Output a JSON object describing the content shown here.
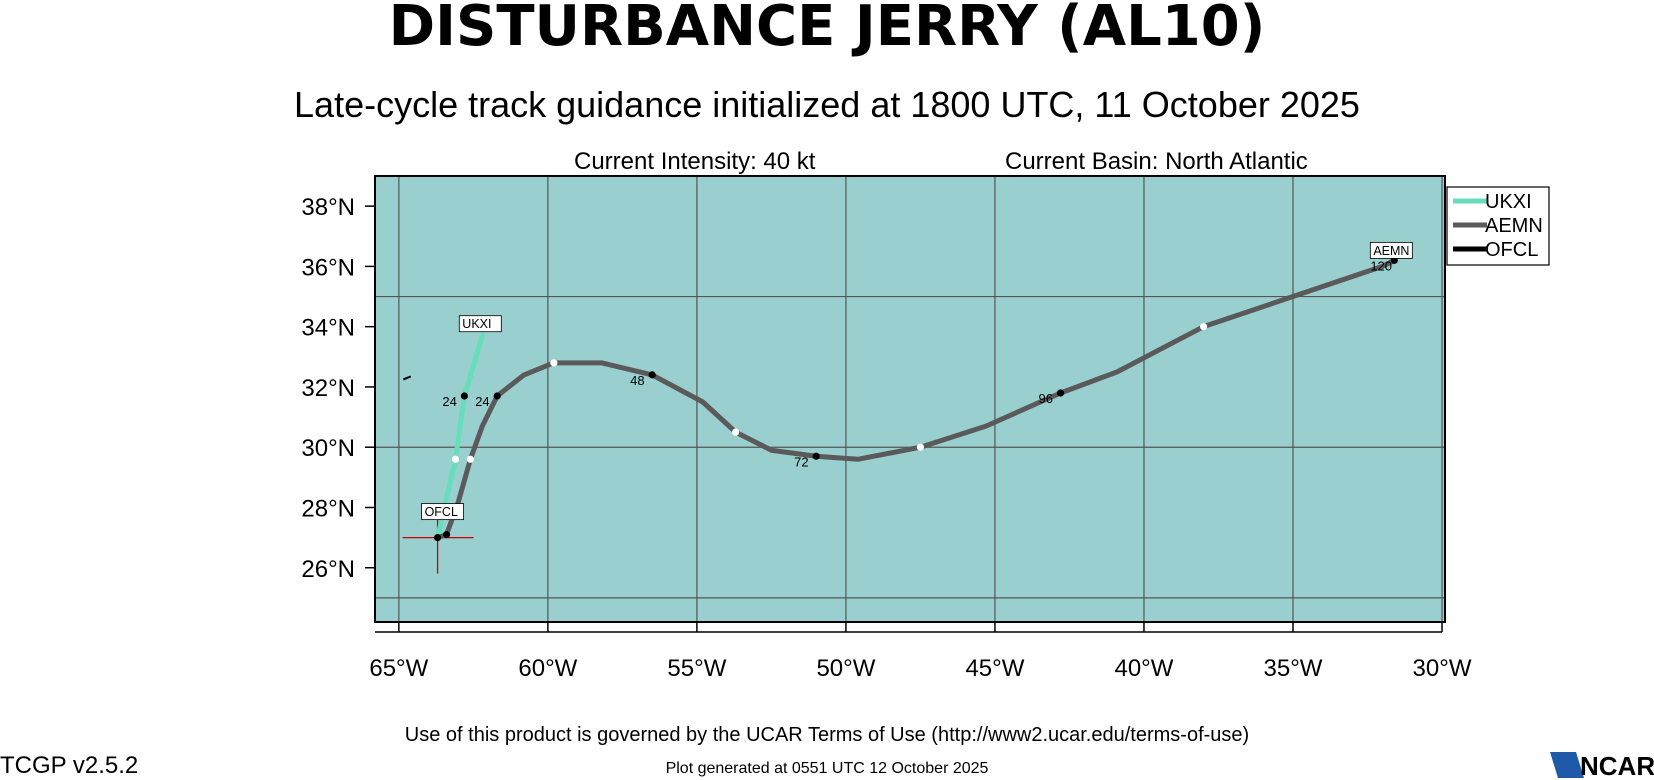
{
  "header": {
    "title": "DISTURBANCE JERRY (AL10)",
    "subtitle": "Late-cycle track guidance initialized at 1800 UTC, 11 October 2025",
    "intensity": "Current Intensity: 40 kt",
    "basin": "Current Basin: North Atlantic"
  },
  "footer": {
    "terms": "Use of this product is governed by the UCAR Terms of Use (http://www2.ucar.edu/terms-of-use)",
    "generated": "Plot generated at 0551 UTC   12 October 2025",
    "version": "TCGP v2.5.2",
    "logo_text": "NCAR"
  },
  "colors": {
    "ocean": "#99cfcf",
    "grid": "#555555",
    "UKXI": "#66ddbb",
    "AEMN": "#5a5a5a",
    "OFCL": "#000000",
    "storm_marker": "#cc0000",
    "logo": "#1e5aa8"
  },
  "chart_data": {
    "type": "line",
    "xlim": [
      -65.8,
      -29.9
    ],
    "ylim": [
      24.2,
      39.0
    ],
    "xticks": [
      -65,
      -60,
      -55,
      -50,
      -45,
      -40,
      -35,
      -30
    ],
    "xtick_labels": [
      "65°W",
      "60°W",
      "55°W",
      "50°W",
      "45°W",
      "40°W",
      "35°W",
      "30°W"
    ],
    "yticks": [
      26,
      28,
      30,
      32,
      34,
      36,
      38
    ],
    "ytick_labels": [
      "26°N",
      "28°N",
      "30°N",
      "32°N",
      "34°N",
      "36°N",
      "38°N"
    ],
    "grid_lon": [
      -65,
      -60,
      -55,
      -50,
      -45,
      -40,
      -35,
      -30
    ],
    "grid_lat": [
      25,
      30,
      35
    ],
    "legend": {
      "position": "top-right outside",
      "entries": [
        "UKXI",
        "AEMN",
        "OFCL"
      ]
    },
    "storm_position": {
      "lon": -63.7,
      "lat": 27.0
    },
    "series": [
      {
        "name": "UKXI",
        "label": "UKXI",
        "lon": [
          -63.7,
          -63.4,
          -63.1,
          -62.8,
          -62.2
        ],
        "lat": [
          27.0,
          28.3,
          29.6,
          31.7,
          33.7
        ],
        "markers": [
          {
            "lon": -63.1,
            "lat": 29.6,
            "type": "white"
          },
          {
            "lon": -62.8,
            "lat": 31.7,
            "type": "black",
            "hour": "24"
          }
        ]
      },
      {
        "name": "AEMN",
        "label": "AEMN",
        "lon": [
          -63.7,
          -63.4,
          -63.0,
          -62.6,
          -62.2,
          -61.7,
          -60.8,
          -59.8,
          -58.2,
          -56.5,
          -54.8,
          -53.7,
          -52.5,
          -51.0,
          -49.6,
          -47.5,
          -45.3,
          -42.8,
          -40.9,
          -38.0,
          -35.0,
          -32.0,
          -31.6
        ],
        "lat": [
          27.0,
          27.1,
          28.2,
          29.6,
          30.7,
          31.7,
          32.4,
          32.8,
          32.8,
          32.4,
          31.5,
          30.5,
          29.9,
          29.7,
          29.6,
          30.0,
          30.7,
          31.8,
          32.5,
          34.0,
          35.0,
          36.0,
          36.2
        ],
        "markers": [
          {
            "lon": -63.4,
            "lat": 27.1,
            "type": "black"
          },
          {
            "lon": -62.6,
            "lat": 29.6,
            "type": "white"
          },
          {
            "lon": -61.7,
            "lat": 31.7,
            "type": "black",
            "hour": "24"
          },
          {
            "lon": -59.8,
            "lat": 32.8,
            "type": "white"
          },
          {
            "lon": -56.5,
            "lat": 32.4,
            "type": "black",
            "hour": "48"
          },
          {
            "lon": -53.7,
            "lat": 30.5,
            "type": "white"
          },
          {
            "lon": -51.0,
            "lat": 29.7,
            "type": "black",
            "hour": "72"
          },
          {
            "lon": -47.5,
            "lat": 30.0,
            "type": "white"
          },
          {
            "lon": -42.8,
            "lat": 31.8,
            "type": "black",
            "hour": "96"
          },
          {
            "lon": -38.0,
            "lat": 34.0,
            "type": "white"
          },
          {
            "lon": -31.6,
            "lat": 36.2,
            "type": "black",
            "hour": "120"
          }
        ]
      },
      {
        "name": "OFCL",
        "label": "OFCL",
        "lon": [
          -63.7
        ],
        "lat": [
          27.0
        ],
        "markers": [
          {
            "lon": -63.7,
            "lat": 27.0,
            "type": "black"
          }
        ]
      }
    ],
    "coastline": [
      {
        "lon": [
          -64.85,
          -64.6
        ],
        "lat": [
          32.25,
          32.35
        ]
      }
    ]
  }
}
